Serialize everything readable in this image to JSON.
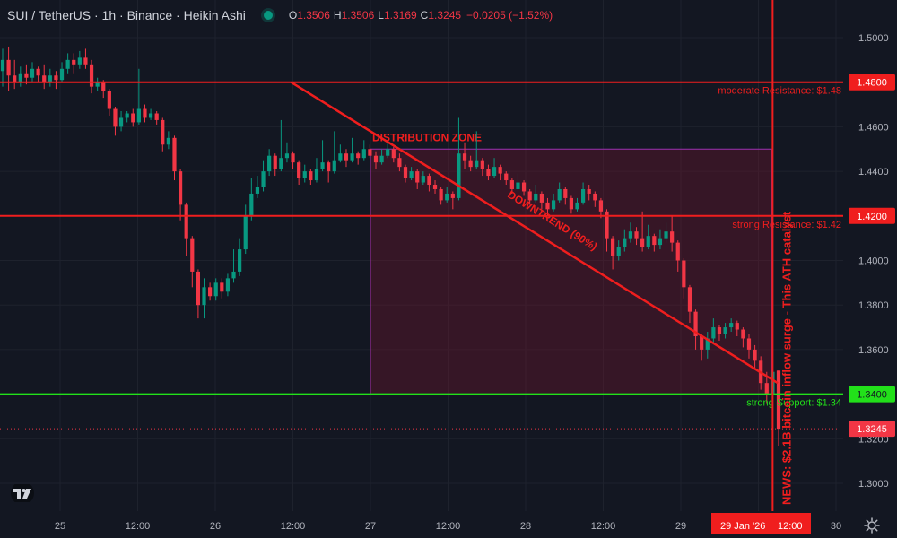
{
  "header": {
    "title": "SUI / TetherUS · 1h · Binance · Heikin Ashi",
    "o_label": "O",
    "o_value": "1.3506",
    "h_label": "H",
    "h_value": "1.3506",
    "l_label": "L",
    "l_value": "1.3169",
    "c_label": "C",
    "c_value": "1.3245",
    "change": "−0.0205 (−1.52%)"
  },
  "colors": {
    "background": "#131722",
    "grid": "#1e222d",
    "up": "#089981",
    "down": "#f23645",
    "annotation_red": "#f01e1e",
    "support_green": "#22e01a",
    "zone_border": "#9b30b0",
    "zone_fill": "rgba(120,20,45,0.35)",
    "axis_text": "#b2b5be"
  },
  "chart_data": {
    "type": "candlestick",
    "title": "SUI / TetherUS · 1h · Binance · Heikin Ashi",
    "y_axis": {
      "ticks": [
        "1.5000",
        "1.4600",
        "1.4400",
        "1.4000",
        "1.3800",
        "1.3600",
        "1.3200",
        "1.3000"
      ],
      "ylim": [
        1.295,
        1.505
      ]
    },
    "x_axis": {
      "ticks": [
        "25",
        "12:00",
        "26",
        "12:00",
        "27",
        "12:00",
        "28",
        "12:00",
        "29",
        "12:00",
        "30"
      ],
      "active_label": "29 Jan '26"
    },
    "price_tags": [
      {
        "label": "1.4800",
        "value": 1.48,
        "color": "#f01e1e"
      },
      {
        "label": "1.4200",
        "value": 1.42,
        "color": "#f01e1e"
      },
      {
        "label": "1.3400",
        "value": 1.34,
        "color": "#22e01a"
      },
      {
        "label": "1.3245",
        "value": 1.3245,
        "color": "#f23645"
      }
    ],
    "levels": [
      {
        "value": 1.48,
        "label": "moderate Resistance: $1.48",
        "color": "#f01e1e"
      },
      {
        "value": 1.42,
        "label": "strong Resistance: $1.42",
        "color": "#f01e1e"
      },
      {
        "value": 1.34,
        "label": "strong Support: $1.34",
        "color": "#22e01a"
      }
    ],
    "zone": {
      "label": "DISTRIBUTION ZONE",
      "price_top": 1.45,
      "price_bottom": 1.34,
      "start": "27",
      "end": "29 ~14:00"
    },
    "trendline": {
      "label": "DOWNTREND (90%)",
      "from": {
        "time": "26 ~12:00",
        "price": 1.48
      },
      "to": {
        "time": "29 ~15:00",
        "price": 1.345
      }
    },
    "news": {
      "label": "NEWS: $2.1B bitcoin inflow surge - This ATH catalyst",
      "time": "29 Jan '26"
    },
    "last_price": 1.3245,
    "ohlc": {
      "open": 1.3506,
      "high": 1.3506,
      "low": 1.3169,
      "close": 1.3245
    },
    "candles": [
      [
        1.485,
        1.49,
        1.495,
        1.478
      ],
      [
        1.49,
        1.483,
        1.496,
        1.476
      ],
      [
        1.483,
        1.48,
        1.49,
        1.477
      ],
      [
        1.48,
        1.484,
        1.487,
        1.478
      ],
      [
        1.484,
        1.482,
        1.488,
        1.479
      ],
      [
        1.482,
        1.486,
        1.489,
        1.48
      ],
      [
        1.486,
        1.483,
        1.487,
        1.48
      ],
      [
        1.483,
        1.48,
        1.488,
        1.477
      ],
      [
        1.48,
        1.483,
        1.486,
        1.478
      ],
      [
        1.483,
        1.481,
        1.485,
        1.477
      ],
      [
        1.481,
        1.486,
        1.489,
        1.48
      ],
      [
        1.486,
        1.49,
        1.493,
        1.484
      ],
      [
        1.49,
        1.488,
        1.493,
        1.484
      ],
      [
        1.488,
        1.491,
        1.494,
        1.486
      ],
      [
        1.491,
        1.488,
        1.495,
        1.486
      ],
      [
        1.488,
        1.478,
        1.49,
        1.475
      ],
      [
        1.478,
        1.48,
        1.482,
        1.476
      ],
      [
        1.48,
        1.476,
        1.481,
        1.473
      ],
      [
        1.476,
        1.468,
        1.477,
        1.465
      ],
      [
        1.468,
        1.46,
        1.469,
        1.456
      ],
      [
        1.46,
        1.464,
        1.467,
        1.458
      ],
      [
        1.464,
        1.466,
        1.467,
        1.462
      ],
      [
        1.466,
        1.462,
        1.468,
        1.46
      ],
      [
        1.462,
        1.468,
        1.486,
        1.461
      ],
      [
        1.468,
        1.464,
        1.47,
        1.462
      ],
      [
        1.464,
        1.466,
        1.468,
        1.463
      ],
      [
        1.466,
        1.463,
        1.467,
        1.461
      ],
      [
        1.463,
        1.452,
        1.464,
        1.449
      ],
      [
        1.452,
        1.455,
        1.458,
        1.45
      ],
      [
        1.455,
        1.44,
        1.456,
        1.436
      ],
      [
        1.44,
        1.425,
        1.441,
        1.418
      ],
      [
        1.425,
        1.41,
        1.426,
        1.402
      ],
      [
        1.41,
        1.395,
        1.411,
        1.388
      ],
      [
        1.395,
        1.38,
        1.396,
        1.374
      ],
      [
        1.38,
        1.388,
        1.392,
        1.374
      ],
      [
        1.388,
        1.384,
        1.39,
        1.382
      ],
      [
        1.384,
        1.39,
        1.392,
        1.382
      ],
      [
        1.39,
        1.386,
        1.392,
        1.383
      ],
      [
        1.386,
        1.392,
        1.394,
        1.384
      ],
      [
        1.392,
        1.395,
        1.405,
        1.39
      ],
      [
        1.395,
        1.405,
        1.41,
        1.393
      ],
      [
        1.405,
        1.42,
        1.425,
        1.403
      ],
      [
        1.42,
        1.43,
        1.437,
        1.418
      ],
      [
        1.43,
        1.433,
        1.438,
        1.428
      ],
      [
        1.433,
        1.44,
        1.445,
        1.431
      ],
      [
        1.44,
        1.447,
        1.45,
        1.438
      ],
      [
        1.447,
        1.441,
        1.448,
        1.438
      ],
      [
        1.441,
        1.446,
        1.463,
        1.44
      ],
      [
        1.446,
        1.448,
        1.453,
        1.444
      ],
      [
        1.448,
        1.444,
        1.449,
        1.441
      ],
      [
        1.444,
        1.437,
        1.445,
        1.434
      ],
      [
        1.437,
        1.44,
        1.443,
        1.435
      ],
      [
        1.44,
        1.436,
        1.441,
        1.434
      ],
      [
        1.436,
        1.441,
        1.446,
        1.435
      ],
      [
        1.441,
        1.444,
        1.454,
        1.44
      ],
      [
        1.444,
        1.44,
        1.445,
        1.435
      ],
      [
        1.44,
        1.445,
        1.458,
        1.439
      ],
      [
        1.445,
        1.448,
        1.452,
        1.444
      ],
      [
        1.448,
        1.445,
        1.45,
        1.442
      ],
      [
        1.445,
        1.448,
        1.455,
        1.444
      ],
      [
        1.448,
        1.446,
        1.449,
        1.443
      ],
      [
        1.446,
        1.45,
        1.454,
        1.445
      ],
      [
        1.45,
        1.447,
        1.452,
        1.446
      ],
      [
        1.447,
        1.444,
        1.449,
        1.441
      ],
      [
        1.444,
        1.447,
        1.45,
        1.443
      ],
      [
        1.447,
        1.45,
        1.453,
        1.446
      ],
      [
        1.45,
        1.446,
        1.451,
        1.444
      ],
      [
        1.446,
        1.442,
        1.448,
        1.44
      ],
      [
        1.442,
        1.437,
        1.443,
        1.435
      ],
      [
        1.437,
        1.44,
        1.442,
        1.436
      ],
      [
        1.44,
        1.435,
        1.441,
        1.432
      ],
      [
        1.435,
        1.438,
        1.44,
        1.434
      ],
      [
        1.438,
        1.434,
        1.439,
        1.431
      ],
      [
        1.434,
        1.432,
        1.436,
        1.43
      ],
      [
        1.432,
        1.427,
        1.433,
        1.425
      ],
      [
        1.427,
        1.43,
        1.433,
        1.426
      ],
      [
        1.43,
        1.428,
        1.431,
        1.423
      ],
      [
        1.428,
        1.448,
        1.464,
        1.427
      ],
      [
        1.448,
        1.445,
        1.453,
        1.441
      ],
      [
        1.445,
        1.442,
        1.447,
        1.44
      ],
      [
        1.442,
        1.445,
        1.458,
        1.441
      ],
      [
        1.445,
        1.441,
        1.446,
        1.438
      ],
      [
        1.441,
        1.438,
        1.443,
        1.436
      ],
      [
        1.438,
        1.442,
        1.446,
        1.437
      ],
      [
        1.442,
        1.439,
        1.443,
        1.436
      ],
      [
        1.439,
        1.436,
        1.44,
        1.434
      ],
      [
        1.436,
        1.432,
        1.437,
        1.43
      ],
      [
        1.432,
        1.435,
        1.439,
        1.431
      ],
      [
        1.435,
        1.431,
        1.436,
        1.429
      ],
      [
        1.431,
        1.427,
        1.432,
        1.425
      ],
      [
        1.427,
        1.43,
        1.434,
        1.426
      ],
      [
        1.43,
        1.426,
        1.431,
        1.423
      ],
      [
        1.426,
        1.423,
        1.428,
        1.42
      ],
      [
        1.423,
        1.427,
        1.43,
        1.422
      ],
      [
        1.427,
        1.432,
        1.435,
        1.426
      ],
      [
        1.432,
        1.428,
        1.433,
        1.425
      ],
      [
        1.428,
        1.423,
        1.429,
        1.421
      ],
      [
        1.423,
        1.426,
        1.428,
        1.422
      ],
      [
        1.426,
        1.432,
        1.435,
        1.425
      ],
      [
        1.432,
        1.43,
        1.434,
        1.427
      ],
      [
        1.43,
        1.427,
        1.431,
        1.424
      ],
      [
        1.427,
        1.422,
        1.428,
        1.419
      ],
      [
        1.422,
        1.41,
        1.423,
        1.404
      ],
      [
        1.41,
        1.402,
        1.411,
        1.396
      ],
      [
        1.402,
        1.406,
        1.409,
        1.4
      ],
      [
        1.406,
        1.41,
        1.414,
        1.404
      ],
      [
        1.41,
        1.413,
        1.417,
        1.408
      ],
      [
        1.413,
        1.41,
        1.415,
        1.407
      ],
      [
        1.41,
        1.406,
        1.422,
        1.404
      ],
      [
        1.406,
        1.411,
        1.416,
        1.405
      ],
      [
        1.411,
        1.407,
        1.412,
        1.404
      ],
      [
        1.407,
        1.41,
        1.414,
        1.405
      ],
      [
        1.41,
        1.413,
        1.417,
        1.408
      ],
      [
        1.413,
        1.408,
        1.42,
        1.404
      ],
      [
        1.408,
        1.4,
        1.409,
        1.395
      ],
      [
        1.4,
        1.388,
        1.401,
        1.383
      ],
      [
        1.388,
        1.377,
        1.389,
        1.372
      ],
      [
        1.377,
        1.366,
        1.378,
        1.36
      ],
      [
        1.366,
        1.36,
        1.367,
        1.355
      ],
      [
        1.36,
        1.365,
        1.368,
        1.356
      ],
      [
        1.365,
        1.37,
        1.374,
        1.363
      ],
      [
        1.37,
        1.367,
        1.371,
        1.364
      ],
      [
        1.367,
        1.37,
        1.372,
        1.365
      ],
      [
        1.37,
        1.372,
        1.374,
        1.368
      ],
      [
        1.372,
        1.369,
        1.373,
        1.366
      ],
      [
        1.369,
        1.365,
        1.37,
        1.361
      ],
      [
        1.365,
        1.36,
        1.367,
        1.356
      ],
      [
        1.36,
        1.355,
        1.362,
        1.351
      ],
      [
        1.355,
        1.345,
        1.357,
        1.342
      ],
      [
        1.345,
        1.34,
        1.35,
        1.336
      ],
      [
        1.34,
        1.35,
        1.353,
        1.338
      ],
      [
        1.3506,
        1.3245,
        1.3506,
        1.3169
      ]
    ]
  }
}
